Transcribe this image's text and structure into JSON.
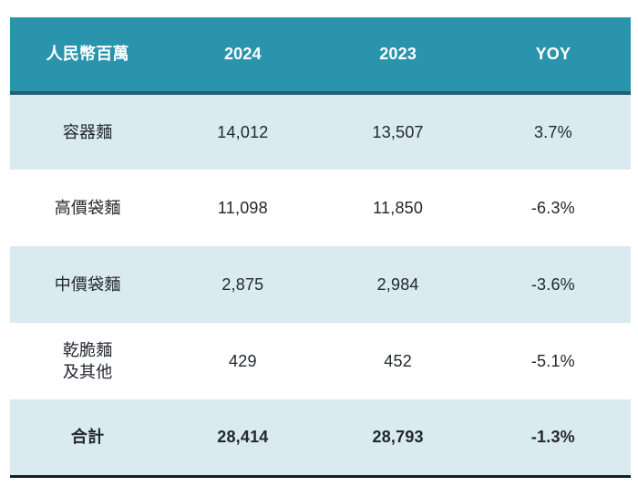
{
  "colors": {
    "header_bg": "#2a94ad",
    "header_text": "#ffffff",
    "header_border": "#215e78",
    "row_alt_bg": "#d9eaf1",
    "row_bg": "#ffffff",
    "total_border": "#141e23",
    "body_text": "#23272e"
  },
  "table": {
    "header": {
      "metric": "人民幣百萬",
      "col2024": "2024",
      "col2023": "2023",
      "yoy": "YOY"
    },
    "rows": [
      {
        "label": "容器麵",
        "y2024": "14,012",
        "y2023": "13,507",
        "yoy": "3.7%"
      },
      {
        "label": "高價袋麵",
        "y2024": "11,098",
        "y2023": "11,850",
        "yoy": "-6.3%"
      },
      {
        "label": "中價袋麵",
        "y2024": "2,875",
        "y2023": "2,984",
        "yoy": "-3.6%"
      },
      {
        "label": "乾脆麵\n及其他",
        "y2024": "429",
        "y2023": "452",
        "yoy": "-5.1%"
      }
    ],
    "total": {
      "label": "合計",
      "y2024": "28,414",
      "y2023": "28,793",
      "yoy": "-1.3%"
    }
  },
  "chart_data": {
    "type": "table",
    "title": "人民幣百萬",
    "columns": [
      "人民幣百萬",
      "2024",
      "2023",
      "YOY"
    ],
    "rows": [
      [
        "容器麵",
        "14,012",
        "13,507",
        "3.7%"
      ],
      [
        "高價袋麵",
        "11,098",
        "11,850",
        "-6.3%"
      ],
      [
        "中價袋麵",
        "2,875",
        "2,984",
        "-3.6%"
      ],
      [
        "乾脆麵及其他",
        "429",
        "452",
        "-5.1%"
      ],
      [
        "合計",
        "28,414",
        "28,793",
        "-1.3%"
      ]
    ],
    "numeric": {
      "categories": [
        "容器麵",
        "高價袋麵",
        "中價袋麵",
        "乾脆麵及其他",
        "合計"
      ],
      "series": [
        {
          "name": "2024",
          "values": [
            14012,
            11098,
            2875,
            429,
            28414
          ]
        },
        {
          "name": "2023",
          "values": [
            13507,
            11850,
            2984,
            452,
            28793
          ]
        },
        {
          "name": "YOY_percent",
          "values": [
            3.7,
            -6.3,
            -3.6,
            -5.1,
            -1.3
          ]
        }
      ]
    }
  }
}
